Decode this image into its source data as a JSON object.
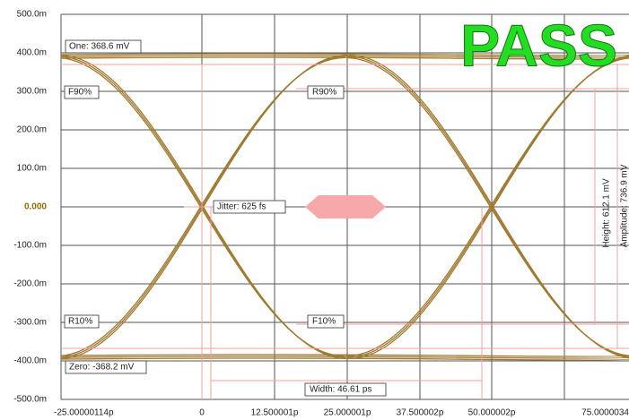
{
  "axes": {
    "y_labels": [
      "500.0m",
      "400.0m",
      "300.0m",
      "200.0m",
      "100.0m",
      "0.000",
      "-100.0m",
      "-200.0m",
      "-300.0m",
      "-400.0m",
      "-500.0m"
    ],
    "x_labels": [
      "-25.00000114p",
      "0",
      "12.500001p",
      "25.000001p",
      "37.500002p",
      "50.000002p",
      "75.0000034"
    ]
  },
  "annotations": {
    "one": "One: 368.6 mV",
    "zero": "Zero: -368.2 mV",
    "f90": "F90%",
    "r90": "R90%",
    "r10": "R10%",
    "f10": "F10%",
    "jitter": "Jitter: 625 fs",
    "width": "Width: 46.61 ps",
    "height": "Height: 612.1 mV",
    "amplitude": "Amplitude: 736.9 mV"
  },
  "status": "PASS"
}
